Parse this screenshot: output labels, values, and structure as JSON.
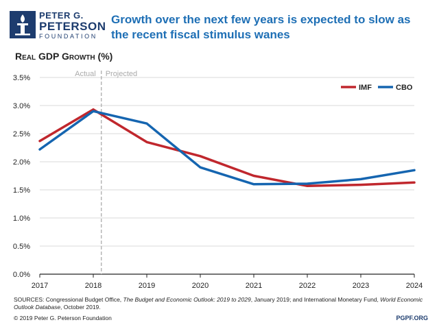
{
  "logo": {
    "line1": "PETER G.",
    "line2": "PETERSON",
    "line3": "FOUNDATION"
  },
  "title": "Growth over the next few years is expected to slow as the recent fiscal stimulus wanes",
  "subtitle": "Real GDP Growth",
  "subtitle_unit": "(%)",
  "colors": {
    "imf": "#c0272d",
    "cbo": "#1565b0",
    "brand": "#1d3c6e",
    "title": "#1e6fb5"
  },
  "chart_data": {
    "type": "line",
    "x": [
      2017,
      2018,
      2019,
      2020,
      2021,
      2022,
      2023,
      2024
    ],
    "series": [
      {
        "name": "IMF",
        "values": [
          2.37,
          2.93,
          2.35,
          2.1,
          1.75,
          1.57,
          1.59,
          1.63
        ]
      },
      {
        "name": "CBO",
        "values": [
          2.22,
          2.9,
          2.68,
          1.9,
          1.6,
          1.61,
          1.69,
          1.85
        ]
      }
    ],
    "ylim": [
      0,
      3.5
    ],
    "yticks": [
      "0.0%",
      "0.5%",
      "1.0%",
      "1.5%",
      "2.0%",
      "2.5%",
      "3.0%",
      "3.5%"
    ],
    "xticks": [
      "2017",
      "2018",
      "2019",
      "2020",
      "2021",
      "2022",
      "2023",
      "2024"
    ],
    "divider_at": 2018.15,
    "annotations": {
      "actual": "Actual",
      "projected": "Projected"
    },
    "legend_position": "top-right"
  },
  "footer": {
    "sources_prefix": "SOURCES: Congressional Budget Office, ",
    "sources_title1": "The Budget and Economic Outlook: 2019 to 2029",
    "sources_mid": ", January 2019; and International Monetary Fund, ",
    "sources_title2": "World Economic Outlook Database",
    "sources_suffix": ", October 2019.",
    "copyright": "© 2019 Peter G. Peterson Foundation",
    "site": "PGPF.ORG"
  }
}
